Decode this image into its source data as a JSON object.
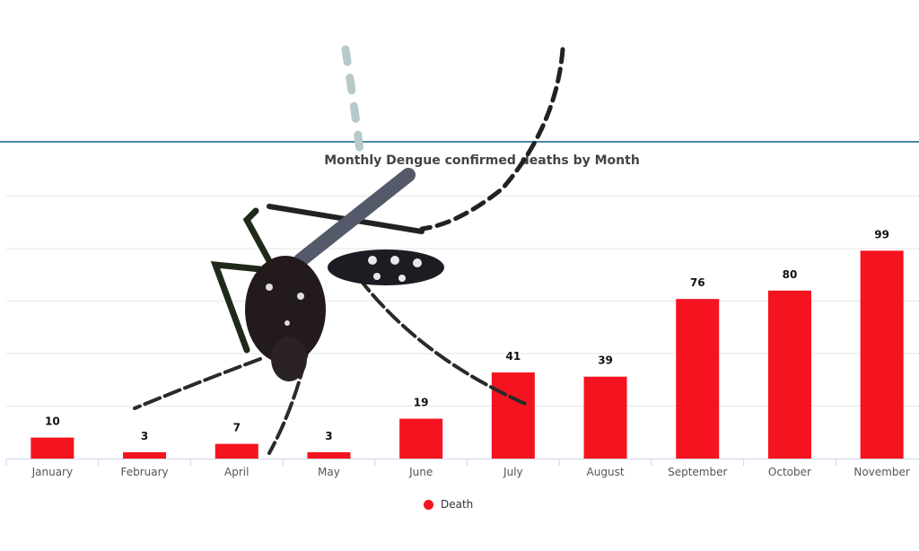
{
  "chart_data": {
    "type": "bar",
    "title": "Monthly Dengue confirmed deaths by Month",
    "categories": [
      "January",
      "February",
      "April",
      "May",
      "June",
      "July",
      "August",
      "September",
      "October",
      "November"
    ],
    "series": [
      {
        "name": "Death",
        "values": [
          10,
          3,
          7,
          3,
          19,
          41,
          39,
          76,
          80,
          99
        ],
        "color": "#f5131f"
      }
    ],
    "xlabel": "",
    "ylabel": "",
    "ylim": [
      0,
      125
    ],
    "grid": true,
    "y_tick_labels_shown": false,
    "legend_placement": "bottom",
    "data_labels": true
  },
  "overlay": {
    "image": "mosquito",
    "accent_line_color": "#4a86a8"
  }
}
